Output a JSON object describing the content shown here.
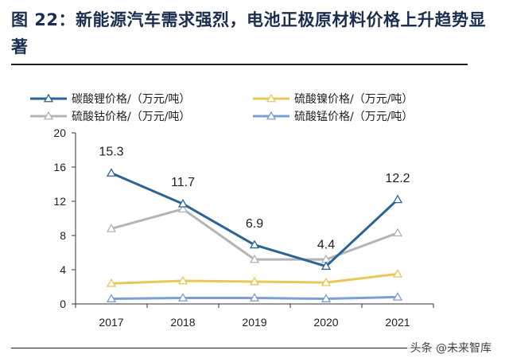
{
  "figure_title": "图 22：新能源汽车需求强烈，电池正极原材料价格上升趋势显著",
  "watermark": "头条 @未来智库",
  "chart_data": {
    "type": "line",
    "categories": [
      "2017",
      "2018",
      "2019",
      "2020",
      "2021"
    ],
    "ylim": [
      0,
      20
    ],
    "yticks": [
      0,
      4,
      8,
      12,
      16,
      20
    ],
    "grid": false,
    "legend_position": "top",
    "series": [
      {
        "name": "碳酸锂价格/（万元/吨）",
        "values": [
          15.3,
          11.7,
          6.9,
          4.4,
          12.2
        ],
        "color": "#2a6496",
        "data_labels": [
          "15.3",
          "11.7",
          "6.9",
          "4.4",
          "12.2"
        ]
      },
      {
        "name": "硫酸镍价格/（万元/吨）",
        "values": [
          2.4,
          2.7,
          2.6,
          2.5,
          3.5
        ],
        "color": "#e9c85a"
      },
      {
        "name": "硫酸钴价格/（万元/吨）",
        "values": [
          8.8,
          11.1,
          5.2,
          5.2,
          8.3
        ],
        "color": "#b4b4b4"
      },
      {
        "name": "硫酸锰价格/（万元/吨）",
        "values": [
          0.6,
          0.7,
          0.7,
          0.6,
          0.8
        ],
        "color": "#7e9fd4"
      }
    ]
  }
}
